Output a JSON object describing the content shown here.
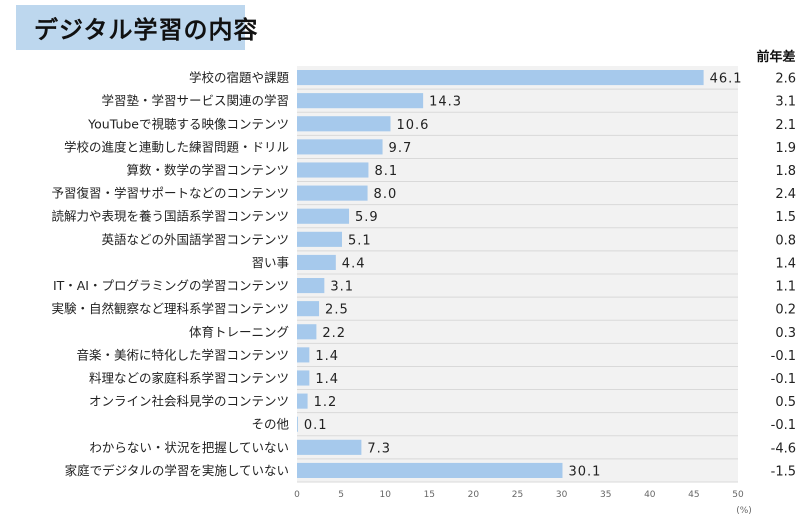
{
  "title": "デジタル学習の内容",
  "diff_header": "前年差",
  "chart_data": {
    "type": "bar",
    "orientation": "horizontal",
    "categories": [
      "学校の宿題や課題",
      "学習塾・学習サービス関連の学習",
      "YouTubeで視聴する映像コンテンツ",
      "学校の進度と連動した練習問題・ドリル",
      "算数・数学の学習コンテンツ",
      "予習復習・学習サポートなどのコンテンツ",
      "読解力や表現を養う国語系学習コンテンツ",
      "英語などの外国語学習コンテンツ",
      "習い事",
      "IT・AI・プログラミングの学習コンテンツ",
      "実験・自然観察など理科系学習コンテンツ",
      "体育トレーニング",
      "音楽・美術に特化した学習コンテンツ",
      "料理などの家庭科系学習コンテンツ",
      "オンライン社会科見学のコンテンツ",
      "その他",
      "わからない・状況を把握していない",
      "家庭でデジタルの学習を実施していない"
    ],
    "values": [
      46.1,
      14.3,
      10.6,
      9.7,
      8.1,
      8.0,
      5.9,
      5.1,
      4.4,
      3.1,
      2.5,
      2.2,
      1.4,
      1.4,
      1.2,
      0.1,
      7.3,
      30.1
    ],
    "value_labels": [
      "46.1",
      "14.3",
      "10.6",
      "9.7",
      "8.1",
      "8.0",
      "5.9",
      "5.1",
      "4.4",
      "3.1",
      "2.5",
      "2.2",
      "1.4",
      "1.4",
      "1.2",
      "0.1",
      "7.3",
      "30.1"
    ],
    "diff": [
      "2.6",
      "3.1",
      "2.1",
      "1.9",
      "1.8",
      "2.4",
      "1.5",
      "0.8",
      "1.4",
      "1.1",
      "0.2",
      "0.3",
      "-0.1",
      "-0.1",
      "0.5",
      "-0.1",
      "-4.6",
      "-1.5"
    ],
    "xlim": [
      0,
      50
    ],
    "xticks": [
      "0",
      "5",
      "10",
      "15",
      "20",
      "25",
      "30",
      "35",
      "40",
      "45",
      "50"
    ],
    "xunit": "(%)",
    "bar_color": "#a6c9ec",
    "plot_bg": "#f2f2f2",
    "grid": false
  }
}
